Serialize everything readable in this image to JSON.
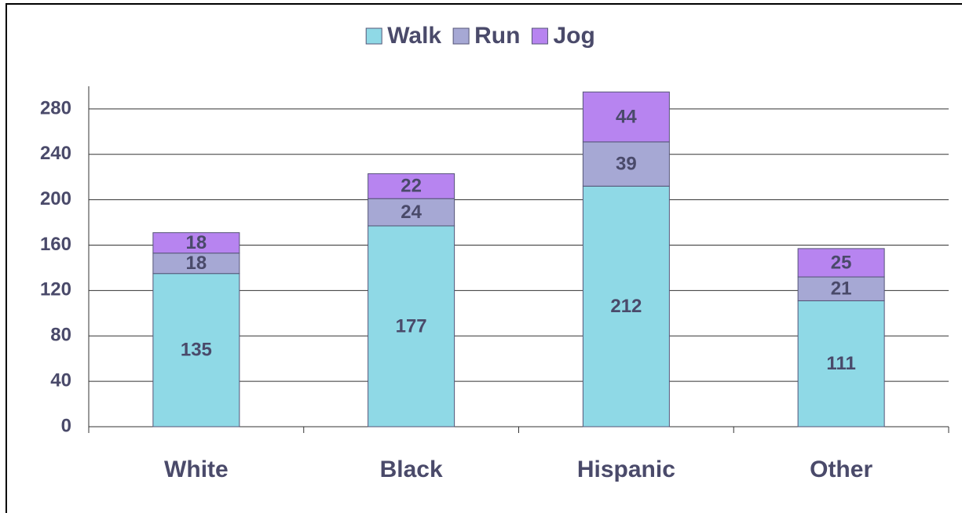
{
  "chart_data": {
    "type": "stacked_bar",
    "categories": [
      "White",
      "Black",
      "Hispanic",
      "Other"
    ],
    "series": [
      {
        "name": "Walk",
        "color": "#8fd9e6",
        "values": [
          135,
          177,
          212,
          111
        ]
      },
      {
        "name": "Run",
        "color": "#a6a8d4",
        "values": [
          18,
          24,
          39,
          21
        ]
      },
      {
        "name": "Jog",
        "color": "#b784f0",
        "values": [
          18,
          22,
          44,
          25
        ]
      }
    ],
    "ylim": [
      0,
      300
    ],
    "yticks": [
      0,
      40,
      80,
      120,
      160,
      200,
      240,
      280
    ],
    "grid": true,
    "legend": "top"
  }
}
